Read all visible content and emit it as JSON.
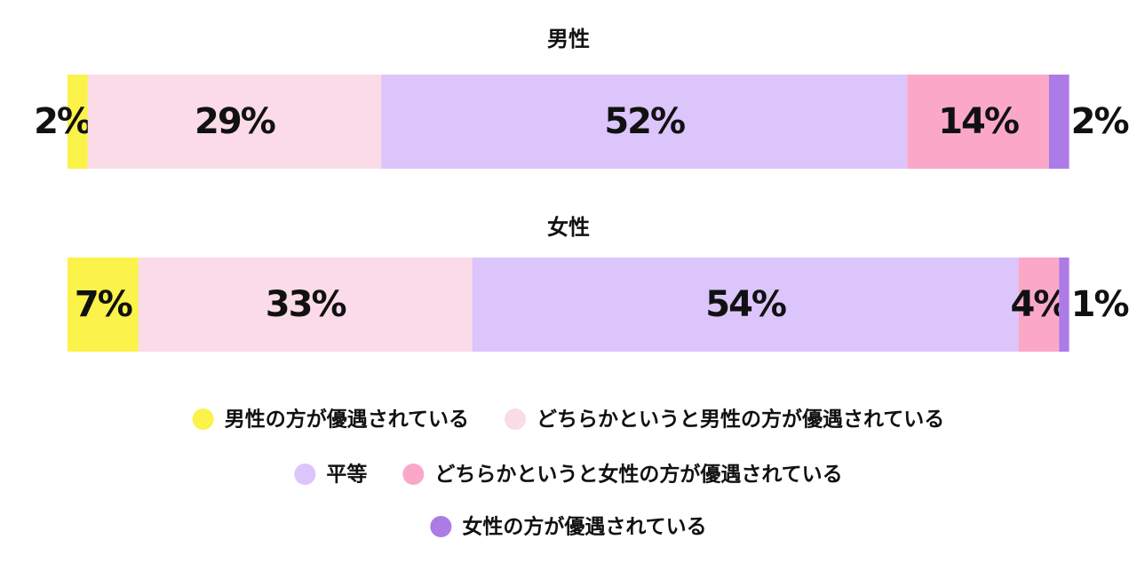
{
  "chart_data": {
    "type": "bar",
    "orientation": "horizontal",
    "stacked": true,
    "categories": [
      "男性",
      "女性"
    ],
    "series": [
      {
        "name": "男性の方が優遇されている",
        "color": "#fbf24a",
        "values": [
          2,
          7
        ],
        "value_labels": [
          "2%",
          "7%"
        ]
      },
      {
        "name": "どちらかというと男性の方が優遇されている",
        "color": "#fbdbe8",
        "values": [
          29,
          33
        ],
        "value_labels": [
          "29%",
          "33%"
        ]
      },
      {
        "name": "平等",
        "color": "#dcc5fa",
        "values": [
          52,
          54
        ],
        "value_labels": [
          "52%",
          "54%"
        ]
      },
      {
        "name": "どちらかというと女性の方が優遇されている",
        "color": "#fba8c8",
        "values": [
          14,
          4
        ],
        "value_labels": [
          "14%",
          "4%"
        ]
      },
      {
        "name": "女性の方が優遇されている",
        "color": "#ad7be6",
        "values": [
          2,
          1
        ],
        "value_labels": [
          "2%",
          "1%"
        ]
      }
    ],
    "xlim": [
      0,
      100
    ]
  }
}
